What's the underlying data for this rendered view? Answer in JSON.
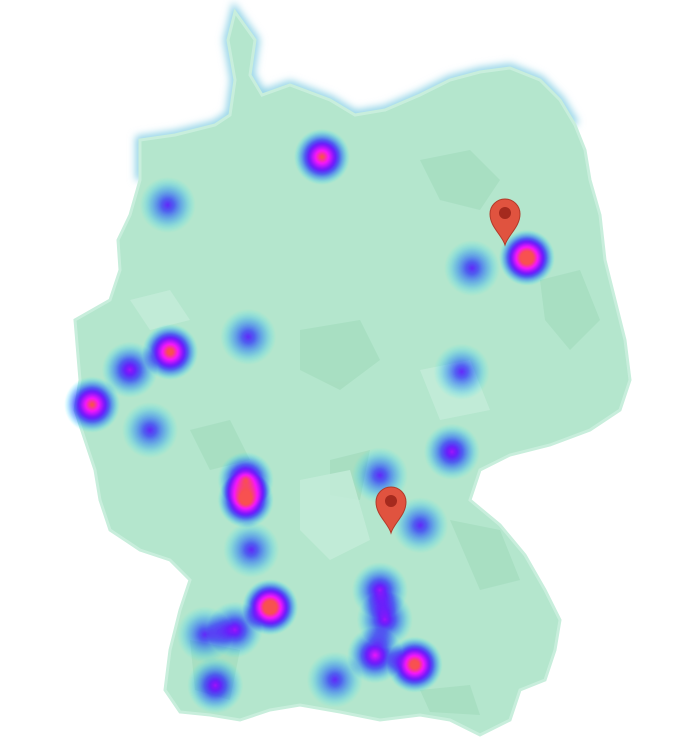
{
  "map": {
    "region": "Germany",
    "land_color": "#b4e6cd",
    "land_shade_color": "#a3dcbd",
    "water_color": "#8fd2e6",
    "bounds": {
      "lon_min": 5.9,
      "lon_max": 15.0,
      "lat_min": 47.3,
      "lat_max": 55.05
    }
  },
  "heatmap": {
    "gradient": [
      "#00ffff",
      "#0080ff",
      "#2020ff",
      "#8000ff",
      "#ff00ff",
      "#ff4040"
    ],
    "points": [
      {
        "lat": 53.49,
        "lon": 9.95,
        "weight": 0.8
      },
      {
        "lat": 52.98,
        "lon": 7.42,
        "weight": 0.4
      },
      {
        "lat": 52.42,
        "lon": 13.31,
        "weight": 1.0
      },
      {
        "lat": 52.31,
        "lon": 12.41,
        "weight": 0.4
      },
      {
        "lat": 51.58,
        "lon": 8.74,
        "weight": 0.4
      },
      {
        "lat": 51.42,
        "lon": 7.46,
        "weight": 0.85
      },
      {
        "lat": 51.23,
        "lon": 6.8,
        "weight": 0.5
      },
      {
        "lat": 50.86,
        "lon": 6.18,
        "weight": 0.8
      },
      {
        "lat": 50.59,
        "lon": 7.13,
        "weight": 0.4
      },
      {
        "lat": 51.21,
        "lon": 12.24,
        "weight": 0.4
      },
      {
        "lat": 50.36,
        "lon": 12.08,
        "weight": 0.5
      },
      {
        "lat": 50.11,
        "lon": 10.9,
        "weight": 0.4
      },
      {
        "lat": 50.06,
        "lon": 8.7,
        "weight": 0.7
      },
      {
        "lat": 49.85,
        "lon": 8.7,
        "weight": 0.9
      },
      {
        "lat": 49.32,
        "lon": 8.79,
        "weight": 0.4
      },
      {
        "lat": 49.58,
        "lon": 11.56,
        "weight": 0.4
      },
      {
        "lat": 48.71,
        "lon": 9.1,
        "weight": 1.0
      },
      {
        "lat": 48.47,
        "lon": 8.52,
        "weight": 0.5
      },
      {
        "lat": 48.42,
        "lon": 8.03,
        "weight": 0.4
      },
      {
        "lat": 47.88,
        "lon": 8.2,
        "weight": 0.5
      },
      {
        "lat": 48.89,
        "lon": 10.9,
        "weight": 0.5
      },
      {
        "lat": 48.58,
        "lon": 10.98,
        "weight": 0.5
      },
      {
        "lat": 48.2,
        "lon": 10.82,
        "weight": 0.6
      },
      {
        "lat": 48.1,
        "lon": 11.47,
        "weight": 0.9
      },
      {
        "lat": 47.94,
        "lon": 10.16,
        "weight": 0.4
      }
    ]
  },
  "markers": [
    {
      "lat": 52.55,
      "lon": 12.95,
      "color": "#e0533f",
      "icon": "map-pin-icon"
    },
    {
      "lat": 49.5,
      "lon": 11.08,
      "color": "#e0533f",
      "icon": "map-pin-icon"
    }
  ]
}
